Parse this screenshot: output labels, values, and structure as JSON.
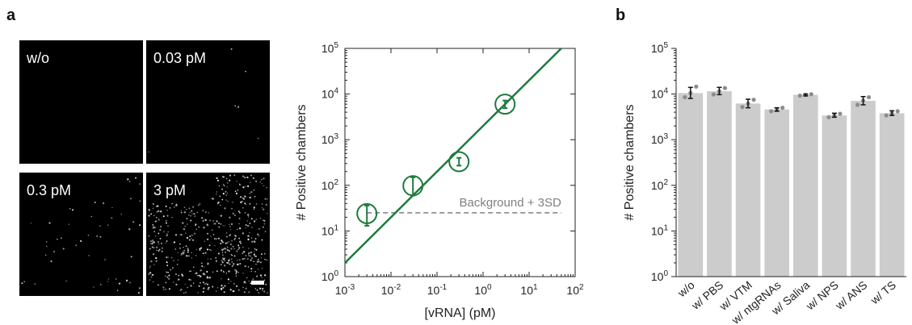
{
  "panels": {
    "a": "a",
    "b": "b"
  },
  "micrographs": [
    {
      "label": "w/o",
      "spots": 0
    },
    {
      "label": "0.03 pM",
      "spots": 6
    },
    {
      "label": "0.3 pM",
      "spots": 60
    },
    {
      "label": "3 pM",
      "spots": 650
    }
  ],
  "chart_data": [
    {
      "type": "scatter",
      "title": "",
      "xlabel": "[vRNA] (pM)",
      "ylabel": "# Positive chambers",
      "xscale": "log",
      "yscale": "log",
      "xlim": [
        0.001,
        100
      ],
      "ylim": [
        1,
        100000
      ],
      "x_ticks": [
        {
          "value": 0.001,
          "base": "10",
          "exp": "-3"
        },
        {
          "value": 0.01,
          "base": "10",
          "exp": "-2"
        },
        {
          "value": 0.1,
          "base": "10",
          "exp": "-1"
        },
        {
          "value": 1,
          "base": "10",
          "exp": "0"
        },
        {
          "value": 10,
          "base": "10",
          "exp": "1"
        },
        {
          "value": 100,
          "base": "10",
          "exp": "2"
        }
      ],
      "y_ticks": [
        {
          "value": 1,
          "base": "10",
          "exp": "0"
        },
        {
          "value": 10,
          "base": "10",
          "exp": "1"
        },
        {
          "value": 100,
          "base": "10",
          "exp": "2"
        },
        {
          "value": 1000,
          "base": "10",
          "exp": "3"
        },
        {
          "value": 10000,
          "base": "10",
          "exp": "4"
        },
        {
          "value": 100000,
          "base": "10",
          "exp": "5"
        }
      ],
      "points": [
        {
          "x": 0.003,
          "y": 24,
          "y_low": 13,
          "y_high": 36
        },
        {
          "x": 0.03,
          "y": 98,
          "y_low": 60,
          "y_high": 150
        },
        {
          "x": 0.3,
          "y": 330,
          "y_low": 270,
          "y_high": 400
        },
        {
          "x": 3,
          "y": 6000,
          "y_low": 4900,
          "y_high": 7200
        }
      ],
      "fit_line": {
        "x": [
          0.001,
          50
        ],
        "y": [
          2,
          100000
        ]
      },
      "background_line": {
        "y": 25,
        "x_start": 0.003,
        "x_end": 50,
        "label": "Background + 3SD"
      },
      "colors": {
        "data": "#1e7a3c",
        "background": "#7f7f7f"
      }
    },
    {
      "type": "bar",
      "title": "",
      "xlabel": "",
      "ylabel": "# Positive chambers",
      "yscale": "log",
      "ylim": [
        1,
        100000
      ],
      "y_ticks": [
        {
          "value": 1,
          "base": "10",
          "exp": "0"
        },
        {
          "value": 10,
          "base": "10",
          "exp": "1"
        },
        {
          "value": 100,
          "base": "10",
          "exp": "2"
        },
        {
          "value": 1000,
          "base": "10",
          "exp": "3"
        },
        {
          "value": 10000,
          "base": "10",
          "exp": "4"
        },
        {
          "value": 100000,
          "base": "10",
          "exp": "5"
        }
      ],
      "categories": [
        "w/o",
        "w/ PBS",
        "w/ VTM",
        "w/ ntgRNAs",
        "w/ Saliva",
        "w/ NPS",
        "w/ ANS",
        "w/ TS"
      ],
      "values": [
        10500,
        11500,
        6200,
        4600,
        9600,
        3400,
        7100,
        3800
      ],
      "err_low": [
        8000,
        9700,
        5000,
        4200,
        9100,
        3100,
        5800,
        3400
      ],
      "err_high": [
        14000,
        14000,
        7700,
        5000,
        10000,
        3800,
        8800,
        4300
      ],
      "replicates": [
        [
          8500,
          10500,
          14500
        ],
        [
          9800,
          11500,
          13500
        ],
        [
          5200,
          6200,
          7500
        ],
        [
          4200,
          4600,
          5000
        ],
        [
          9200,
          9600,
          9900
        ],
        [
          3100,
          3400,
          3700
        ],
        [
          5800,
          7200,
          8500
        ],
        [
          3400,
          3800,
          4200
        ]
      ],
      "colors": {
        "bar": "#cccccc",
        "dot": "#8c8c8c",
        "error": "#111111"
      }
    }
  ]
}
